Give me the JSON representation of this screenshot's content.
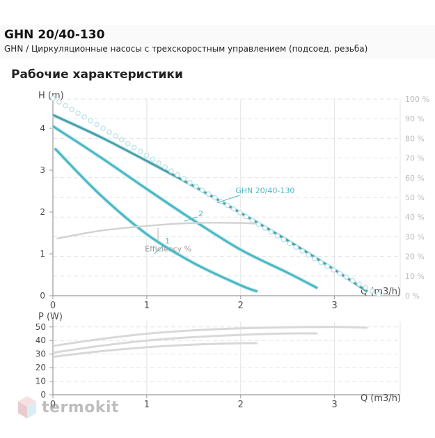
{
  "header": {
    "title": "GHN 20/40-130",
    "subtitle": "GHN / Циркуляционные насосы с трехскоростным управлением (подсоед. резьба)"
  },
  "section": {
    "heading": "Рабочие характеристики"
  },
  "watermark": {
    "text": "termokit"
  },
  "colors": {
    "curve": "#4bb9c4",
    "curve_main": "#4a9fab",
    "efficiency_dots": "#bfe3e8",
    "efficiency_line": "#d2d2d2",
    "power_line": "#d8d8d8",
    "grid": "#e3e3e3",
    "axis": "#9a9a9a",
    "label": "#4c4c4c",
    "right_axis_label": "#bbbbbb",
    "logo": "#d9a3a9"
  },
  "chart_data": [
    {
      "type": "line",
      "title": "",
      "ylabel": "H (m)",
      "xlabel": "Q (m3/h)",
      "xlim": [
        0,
        3.7
      ],
      "ylim": [
        0,
        4.7
      ],
      "xticks": [
        0,
        1,
        2,
        3
      ],
      "yticks": [
        0,
        1,
        2,
        3,
        4
      ],
      "y2label": "",
      "y2lim": [
        0,
        100
      ],
      "y2ticks": [
        "0 %",
        "10 %",
        "20 %",
        "30 %",
        "40 %",
        "50 %",
        "60 %",
        "70 %",
        "80 %",
        "90 %",
        "100 %"
      ],
      "grid": true,
      "series": [
        {
          "name": "GHN 20/40-130",
          "style": "main",
          "x": [
            0,
            0.5,
            1,
            1.5,
            2,
            2.5,
            3,
            3.35
          ],
          "y": [
            4.32,
            3.8,
            3.22,
            2.62,
            1.98,
            1.32,
            0.62,
            0.1
          ]
        },
        {
          "name": "2",
          "style": "speed",
          "x": [
            0,
            0.5,
            1,
            1.5,
            2,
            2.5,
            2.82
          ],
          "y": [
            4.05,
            3.32,
            2.55,
            1.8,
            1.1,
            0.55,
            0.18
          ]
        },
        {
          "name": "1",
          "style": "speed",
          "x": [
            0.02,
            0.5,
            1,
            1.5,
            2,
            2.18
          ],
          "y": [
            3.52,
            2.42,
            1.47,
            0.78,
            0.25,
            0.1
          ]
        },
        {
          "name": "Efficiency %",
          "style": "efficiency",
          "axis": "right",
          "x": [
            0.04,
            0.5,
            1,
            1.5,
            2,
            2.2
          ],
          "y": [
            29,
            33,
            35.5,
            37,
            37,
            36.5
          ]
        },
        {
          "name": "",
          "style": "dotted",
          "x": [
            0,
            0.5,
            1,
            1.5,
            2,
            2.5,
            3,
            3.5
          ],
          "y": [
            4.72,
            4.05,
            3.35,
            2.65,
            1.97,
            1.28,
            0.6,
            0.0
          ]
        }
      ],
      "annotations": [
        {
          "text": "GHN 20/40-130",
          "x": 1.9,
          "y": 2.45
        },
        {
          "text": "2",
          "x": 1.52,
          "y": 1.95
        },
        {
          "text": "1",
          "x": 1.18,
          "y": 1.28
        },
        {
          "text": "Efficiency %",
          "x": 0.98,
          "y": 1.06
        }
      ]
    },
    {
      "type": "line",
      "title": "",
      "ylabel": "P (W)",
      "xlabel": "Q (m3/h)",
      "xlim": [
        0,
        3.7
      ],
      "ylim": [
        0,
        54
      ],
      "xticks": [
        0,
        1,
        2,
        3
      ],
      "yticks": [
        0,
        10,
        20,
        30,
        40,
        50
      ],
      "grid": true,
      "series": [
        {
          "name": "",
          "x": [
            0,
            0.5,
            1,
            1.5,
            2,
            2.5,
            3,
            3.35
          ],
          "y": [
            36,
            41,
            45,
            47.5,
            49,
            49.8,
            50,
            49.5
          ]
        },
        {
          "name": "",
          "x": [
            0,
            0.5,
            1,
            1.5,
            2,
            2.5,
            2.82
          ],
          "y": [
            31,
            36,
            40,
            42.5,
            44.2,
            45.2,
            45.2
          ]
        },
        {
          "name": "",
          "x": [
            0,
            0.5,
            1,
            1.5,
            2,
            2.18
          ],
          "y": [
            28,
            32,
            35,
            37,
            38,
            38
          ]
        }
      ]
    }
  ]
}
